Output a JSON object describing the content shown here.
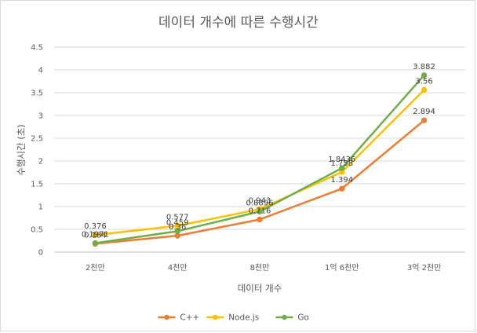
{
  "chart_data": {
    "type": "line",
    "title": "데이터 개수에 따른 수행시간",
    "xlabel": "데이터 개수",
    "ylabel": "수행시간 (초)",
    "categories": [
      "2천만",
      "4천만",
      "8천만",
      "1억 6천만",
      "3억 2천만"
    ],
    "ylim": [
      0,
      4.5
    ],
    "yticks": [
      "0",
      "0.5",
      "1",
      "1.5",
      "2",
      "2.5",
      "3",
      "3.5",
      "4",
      "4.5"
    ],
    "grid": true,
    "legend_position": "bottom",
    "series": [
      {
        "name": "C++",
        "color": "#ed7d31",
        "values": [
          0.184,
          0.36,
          0.716,
          1.394,
          2.894
        ],
        "labels": [
          "0.184",
          "0.36",
          "0.716",
          "1.394",
          "2.894"
        ]
      },
      {
        "name": "Node.js",
        "color": "#ffc000",
        "values": [
          0.376,
          0.577,
          0.943,
          1.758,
          3.56
        ],
        "labels": [
          "0.376",
          "0.577",
          "0.943",
          "1.758",
          "3.56"
        ]
      },
      {
        "name": "Go",
        "color": "#70ad47",
        "values": [
          0.1971,
          0.459,
          0.8896,
          1.8436,
          3.882
        ],
        "labels": [
          "0.1971",
          "0.459",
          "0.8896",
          "1.8436",
          "3.882"
        ]
      }
    ]
  }
}
